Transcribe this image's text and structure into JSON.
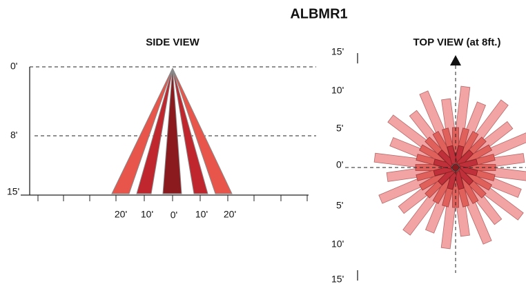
{
  "header": {
    "title": "ALBMR1"
  },
  "side_view": {
    "title": "SIDE VIEW",
    "depth_labels": [
      "0'",
      "8'",
      "15'"
    ],
    "width_labels": [
      "20'",
      "10'",
      "0'",
      "10'",
      "20'"
    ]
  },
  "top_view": {
    "title": "TOP VIEW (at 8ft.)",
    "distance_labels": [
      "15'",
      "10'",
      "5'",
      "0'",
      "5'",
      "10'",
      "15'"
    ]
  }
}
